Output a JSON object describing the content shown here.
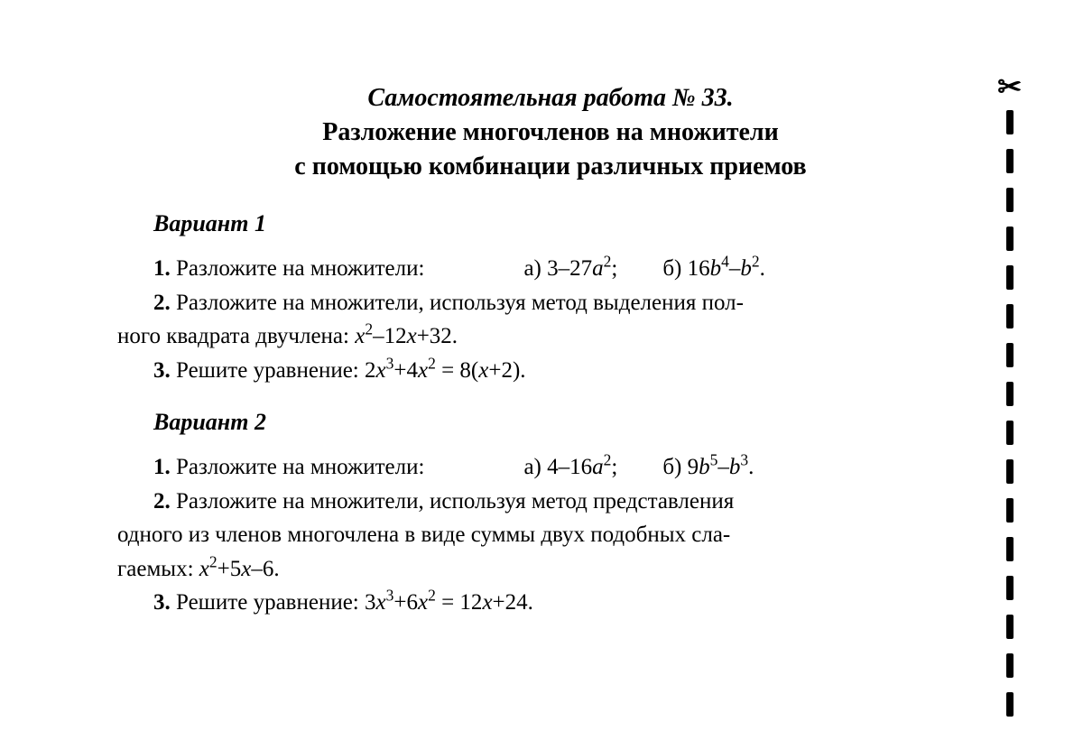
{
  "title": {
    "line1": "Самостоятельная работа № 33.",
    "line2": "Разложение многочленов на множители",
    "line3": "с помощью комбинации различных приемов"
  },
  "variants": [
    {
      "heading": "Вариант 1",
      "p1_label": "1.",
      "p1_text": "Разложите на множители:",
      "p1_a_label": "а)",
      "p1_a_expr_pre": "3–27",
      "p1_a_var": "a",
      "p1_a_sup": "2",
      "p1_a_punct": ";",
      "p1_b_label": "б)",
      "p1_b_pre": "16",
      "p1_b_var1": "b",
      "p1_b_sup1": "4",
      "p1_b_mid": "–",
      "p1_b_var2": "b",
      "p1_b_sup2": "2",
      "p1_b_punct": ".",
      "p2_label": "2.",
      "p2_text_a": "Разложите на множители, используя метод выделения пол-",
      "p2_text_b": "ного квадрата двучлена:",
      "p2_var1": "x",
      "p2_sup1": "2",
      "p2_mid": "–12",
      "p2_var2": "x",
      "p2_tail": "+32.",
      "p3_label": "3.",
      "p3_text": "Решите уравнение:",
      "p3_pre": "2",
      "p3_var1": "x",
      "p3_sup1": "3",
      "p3_plus": "+4",
      "p3_var2": "x",
      "p3_sup2": "2",
      "p3_eq": " = 8(",
      "p3_var3": "x",
      "p3_tail": "+2)."
    },
    {
      "heading": "Вариант 2",
      "p1_label": "1.",
      "p1_text": "Разложите на множители:",
      "p1_a_label": "а)",
      "p1_a_expr_pre": "4–16",
      "p1_a_var": "a",
      "p1_a_sup": "2",
      "p1_a_punct": ";",
      "p1_b_label": "б)",
      "p1_b_pre": "9",
      "p1_b_var1": "b",
      "p1_b_sup1": "5",
      "p1_b_mid": "–",
      "p1_b_var2": "b",
      "p1_b_sup2": "3",
      "p1_b_punct": ".",
      "p2_label": "2.",
      "p2_text_a": "Разложите на множители, используя метод представления",
      "p2_text_b": "одного из членов многочлена в виде суммы двух подобных сла-",
      "p2_text_c": "гаемых:",
      "p2_var1": "x",
      "p2_sup1": "2",
      "p2_mid": "+5",
      "p2_var2": "x",
      "p2_tail": "–6.",
      "p3_label": "3.",
      "p3_text": "Решите уравнение:",
      "p3_pre": "3",
      "p3_var1": "x",
      "p3_sup1": "3",
      "p3_plus": "+6",
      "p3_var2": "x",
      "p3_sup2": "2",
      "p3_eq": " = 12",
      "p3_var3": "x",
      "p3_tail": "+24."
    }
  ],
  "scissors": "✂"
}
